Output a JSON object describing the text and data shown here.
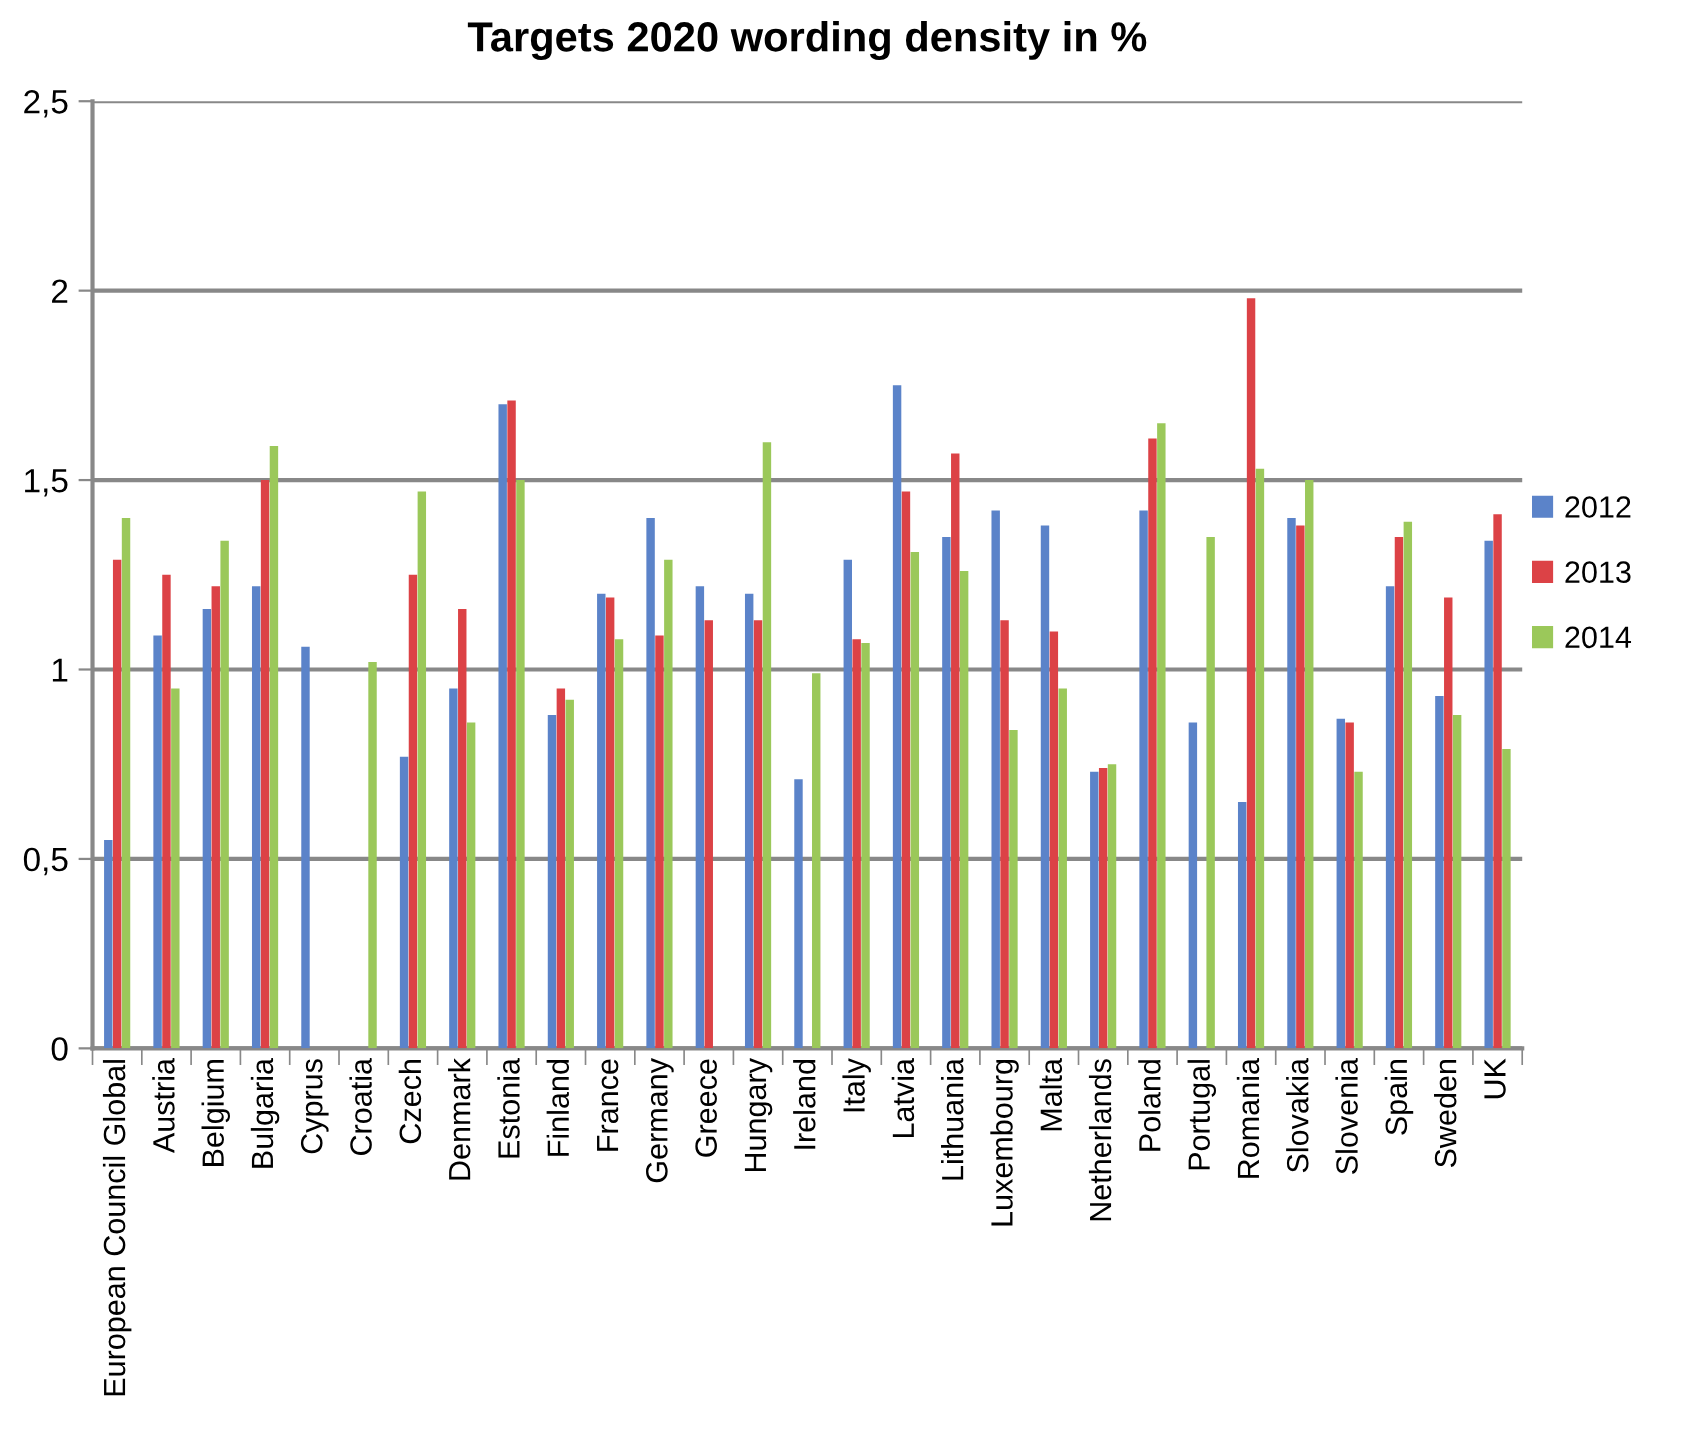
{
  "chart_data": {
    "type": "bar",
    "title": "Targets 2020 wording density in %",
    "categories": [
      "European Council Global",
      "Austria",
      "Belgium",
      "Bulgaria",
      "Cyprus",
      "Croatia",
      "Czech",
      "Denmark",
      "Estonia",
      "Finland",
      "France",
      "Germany",
      "Greece",
      "Hungary",
      "Ireland",
      "Italy",
      "Latvia",
      "Lithuania",
      "Luxembourg",
      "Malta",
      "Netherlands",
      "Poland",
      "Portugal",
      "Romania",
      "Slovakia",
      "Slovenia",
      "Spain",
      "Sweden",
      "UK"
    ],
    "series": [
      {
        "name": "2012",
        "color": "#5b83c9",
        "values": [
          0.55,
          1.09,
          1.16,
          1.22,
          1.06,
          null,
          0.77,
          0.95,
          1.7,
          0.88,
          1.2,
          1.4,
          1.22,
          1.2,
          0.71,
          1.29,
          1.75,
          1.35,
          1.42,
          1.38,
          0.73,
          1.42,
          0.86,
          0.65,
          1.4,
          0.87,
          1.22,
          0.93,
          1.34
        ]
      },
      {
        "name": "2013",
        "color": "#dc4246",
        "values": [
          1.29,
          1.25,
          1.22,
          1.5,
          null,
          null,
          1.25,
          1.16,
          1.71,
          0.95,
          1.19,
          1.09,
          1.13,
          1.13,
          null,
          1.08,
          1.47,
          1.57,
          1.13,
          1.1,
          0.74,
          1.61,
          null,
          1.98,
          1.38,
          0.86,
          1.35,
          1.19,
          1.41
        ]
      },
      {
        "name": "2014",
        "color": "#9bc85a",
        "values": [
          1.4,
          0.95,
          1.34,
          1.59,
          null,
          1.02,
          1.47,
          0.86,
          1.5,
          0.92,
          1.08,
          1.29,
          null,
          1.6,
          0.99,
          1.07,
          1.31,
          1.26,
          0.84,
          0.95,
          0.75,
          1.65,
          1.35,
          1.53,
          1.5,
          0.73,
          1.39,
          0.88,
          0.79
        ]
      }
    ],
    "ylim": [
      0,
      2.5
    ],
    "yticks": [
      0,
      {
        "value": 0.5,
        "label": "0,5"
      },
      1,
      {
        "value": 1.5,
        "label": "1,5"
      },
      2,
      {
        "value": 2.5,
        "label": "2,5"
      }
    ],
    "grid": "y",
    "legend": "right"
  }
}
